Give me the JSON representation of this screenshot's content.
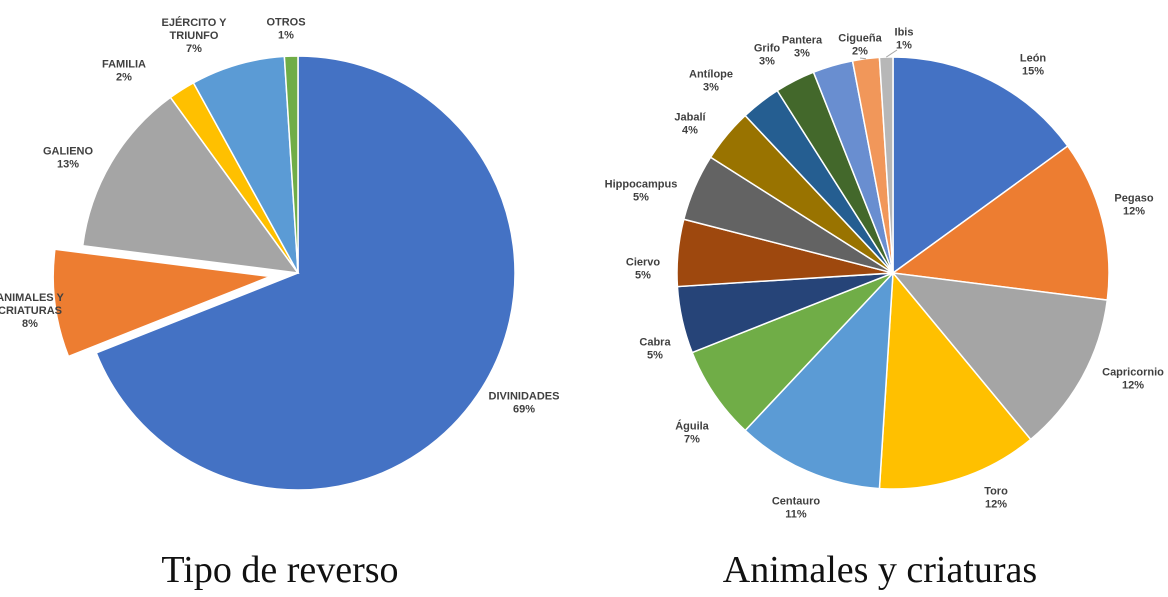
{
  "chart_data": [
    {
      "type": "pie",
      "caption": "Tipo de reverso",
      "slices": [
        {
          "label": "DIVINIDADES",
          "value": 69,
          "pct_label": "69%",
          "color": "#4472C4"
        },
        {
          "label": "ANIMALES Y CRIATURAS",
          "value": 8,
          "pct_label": "8%",
          "color": "#ED7D31",
          "exploded": true
        },
        {
          "label": "GALIENO",
          "value": 13,
          "pct_label": "13%",
          "color": "#A5A5A5"
        },
        {
          "label": "FAMILIA",
          "value": 2,
          "pct_label": "2%",
          "color": "#FFC000"
        },
        {
          "label": "EJÉRCITO Y TRIUNFO",
          "value": 7,
          "pct_label": "7%",
          "color": "#5B9BD5"
        },
        {
          "label": "OTROS",
          "value": 1,
          "pct_label": "1%",
          "color": "#70AD47"
        }
      ]
    },
    {
      "type": "pie",
      "caption": "Animales y criaturas",
      "slices": [
        {
          "label": "León",
          "value": 15,
          "pct_label": "15%",
          "color": "#4472C4"
        },
        {
          "label": "Pegaso",
          "value": 12,
          "pct_label": "12%",
          "color": "#ED7D31"
        },
        {
          "label": "Capricornio",
          "value": 12,
          "pct_label": "12%",
          "color": "#A5A5A5"
        },
        {
          "label": "Toro",
          "value": 12,
          "pct_label": "12%",
          "color": "#FFC000"
        },
        {
          "label": "Centauro",
          "value": 11,
          "pct_label": "11%",
          "color": "#5B9BD5"
        },
        {
          "label": "Águila",
          "value": 7,
          "pct_label": "7%",
          "color": "#70AD47"
        },
        {
          "label": "Cabra",
          "value": 5,
          "pct_label": "5%",
          "color": "#264478"
        },
        {
          "label": "Ciervo",
          "value": 5,
          "pct_label": "5%",
          "color": "#9E480E"
        },
        {
          "label": "Hippocampus",
          "value": 5,
          "pct_label": "5%",
          "color": "#636363"
        },
        {
          "label": "Jabalí",
          "value": 4,
          "pct_label": "4%",
          "color": "#997300"
        },
        {
          "label": "Antílope",
          "value": 3,
          "pct_label": "3%",
          "color": "#255E91"
        },
        {
          "label": "Grifo",
          "value": 3,
          "pct_label": "3%",
          "color": "#43682B"
        },
        {
          "label": "Pantera",
          "value": 3,
          "pct_label": "3%",
          "color": "#698ED0"
        },
        {
          "label": "Cigueña",
          "value": 2,
          "pct_label": "2%",
          "color": "#F1975A"
        },
        {
          "label": "Ibis",
          "value": 1,
          "pct_label": "1%",
          "color": "#B7B7B7"
        }
      ]
    }
  ]
}
